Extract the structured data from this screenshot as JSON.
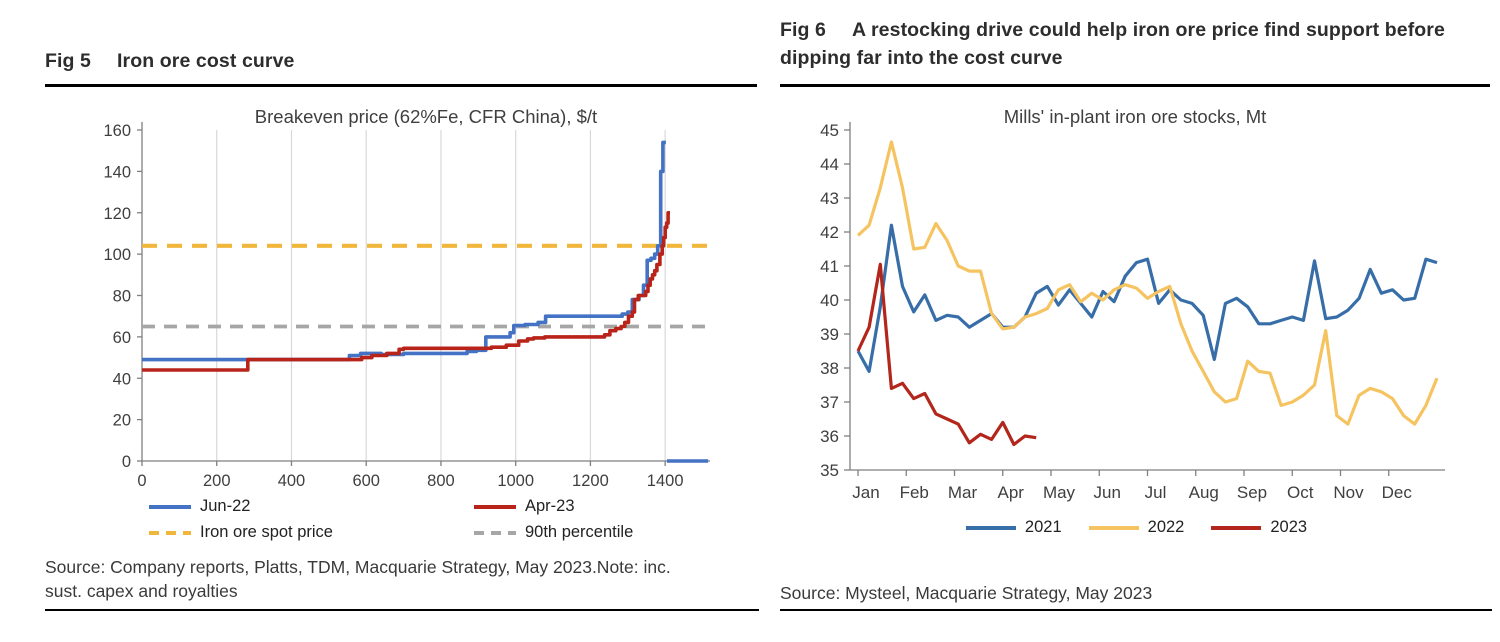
{
  "fig5": {
    "label": "Fig 5",
    "title": "Iron ore cost curve",
    "source": "Source: Company reports, Platts, TDM, Macquarie Strategy, May 2023.Note: inc. sust. capex and royalties"
  },
  "fig6": {
    "label": "Fig 6",
    "title": "A restocking drive could help iron ore price find support before dipping far into the cost curve",
    "source": "Source: Mysteel, Macquarie Strategy, May 2023"
  },
  "chart_data": [
    {
      "id": "fig5-chart",
      "type": "line",
      "title": "Breakeven price (62%Fe, CFR China), $/t",
      "xlabel": "",
      "ylabel": "",
      "xlim": [
        0,
        1520
      ],
      "ylim": [
        0,
        160
      ],
      "xticks": [
        0,
        200,
        400,
        600,
        800,
        1000,
        1200,
        1400
      ],
      "yticks": [
        0,
        20,
        40,
        60,
        80,
        100,
        120,
        140,
        160
      ],
      "grid": "vertical-light",
      "grid_color": "#d8d8d8",
      "axis_color": "#7f7f7f",
      "tick_text_color": "#3f3f3f",
      "series": [
        {
          "name": "Jun-22",
          "color": "#4472c4",
          "dash": null,
          "width": 3.6,
          "segments": [
            [
              [
                0,
                49
              ],
              [
                555,
                49
              ],
              [
                555,
                51
              ],
              [
                585,
                51
              ],
              [
                585,
                52
              ],
              [
                640,
                52
              ],
              [
                640,
                51.5
              ],
              [
                700,
                51.5
              ],
              [
                700,
                52
              ],
              [
                870,
                52
              ],
              [
                870,
                53
              ],
              [
                895,
                53
              ],
              [
                895,
                53.5
              ],
              [
                920,
                53.5
              ],
              [
                920,
                60
              ],
              [
                985,
                60
              ],
              [
                985,
                62
              ],
              [
                995,
                62
              ],
              [
                995,
                65.5
              ],
              [
                1025,
                65.5
              ],
              [
                1025,
                66
              ],
              [
                1060,
                66
              ],
              [
                1060,
                67
              ],
              [
                1080,
                67
              ],
              [
                1080,
                70
              ],
              [
                1285,
                70
              ],
              [
                1285,
                71
              ],
              [
                1300,
                71
              ],
              [
                1300,
                72
              ],
              [
                1312,
                72
              ],
              [
                1312,
                78
              ],
              [
                1330,
                78
              ],
              [
                1330,
                80
              ],
              [
                1342,
                80
              ],
              [
                1342,
                85
              ],
              [
                1352,
                85
              ],
              [
                1352,
                97
              ],
              [
                1362,
                97
              ],
              [
                1362,
                98
              ],
              [
                1372,
                98
              ],
              [
                1372,
                100
              ],
              [
                1380,
                100
              ],
              [
                1380,
                104
              ],
              [
                1388,
                104
              ],
              [
                1388,
                140
              ],
              [
                1394,
                140
              ],
              [
                1394,
                154
              ],
              [
                1402,
                154
              ]
            ],
            [
              [
                1405,
                0
              ],
              [
                1515,
                0
              ]
            ]
          ]
        },
        {
          "name": "Apr-23",
          "color": "#b8231a",
          "dash": null,
          "width": 3.6,
          "segments": [
            [
              [
                0,
                44
              ],
              [
                283,
                44
              ],
              [
                283,
                49
              ],
              [
                588,
                49
              ],
              [
                588,
                50
              ],
              [
                615,
                50
              ],
              [
                615,
                51
              ],
              [
                655,
                51
              ],
              [
                655,
                52
              ],
              [
                688,
                52
              ],
              [
                688,
                54
              ],
              [
                700,
                54
              ],
              [
                700,
                54.5
              ],
              [
                935,
                54.5
              ],
              [
                935,
                55
              ],
              [
                975,
                55
              ],
              [
                975,
                56
              ],
              [
                1008,
                56
              ],
              [
                1008,
                58
              ],
              [
                1032,
                58
              ],
              [
                1032,
                59
              ],
              [
                1048,
                59
              ],
              [
                1048,
                59.5
              ],
              [
                1078,
                59.5
              ],
              [
                1078,
                60
              ],
              [
                1238,
                60
              ],
              [
                1238,
                61
              ],
              [
                1252,
                61
              ],
              [
                1252,
                63
              ],
              [
                1268,
                63
              ],
              [
                1268,
                64
              ],
              [
                1282,
                64
              ],
              [
                1282,
                65
              ],
              [
                1292,
                65
              ],
              [
                1292,
                67
              ],
              [
                1302,
                67
              ],
              [
                1302,
                70
              ],
              [
                1312,
                70
              ],
              [
                1312,
                72
              ],
              [
                1318,
                72
              ],
              [
                1318,
                78
              ],
              [
                1328,
                78
              ],
              [
                1328,
                80
              ],
              [
                1348,
                80
              ],
              [
                1348,
                82
              ],
              [
                1354,
                82
              ],
              [
                1354,
                85
              ],
              [
                1360,
                85
              ],
              [
                1360,
                88
              ],
              [
                1366,
                88
              ],
              [
                1366,
                90
              ],
              [
                1372,
                90
              ],
              [
                1372,
                92
              ],
              [
                1378,
                92
              ],
              [
                1378,
                95
              ],
              [
                1386,
                95
              ],
              [
                1386,
                100
              ],
              [
                1392,
                100
              ],
              [
                1392,
                104
              ],
              [
                1396,
                104
              ],
              [
                1396,
                108
              ],
              [
                1400,
                108
              ],
              [
                1400,
                113
              ],
              [
                1404,
                113
              ],
              [
                1404,
                115
              ],
              [
                1408,
                115
              ],
              [
                1408,
                120
              ],
              [
                1413,
                120
              ]
            ]
          ]
        },
        {
          "name": "Iron ore spot price",
          "color": "#f0b73c",
          "dash": [
            15,
            10
          ],
          "width": 4.2,
          "segments": [
            [
              [
                0,
                104
              ],
              [
                1515,
                104
              ]
            ]
          ]
        },
        {
          "name": "90th percentile",
          "color": "#a6a6a6",
          "dash": [
            13,
            9
          ],
          "width": 3.8,
          "segments": [
            [
              [
                0,
                65
              ],
              [
                1515,
                65
              ]
            ]
          ]
        }
      ],
      "legend": [
        {
          "label": "Jun-22",
          "color": "#4472c4",
          "dashed": false
        },
        {
          "label": "Apr-23",
          "color": "#b8231a",
          "dashed": false
        },
        {
          "label": "Iron ore spot price",
          "color": "#f0b73c",
          "dashed": true
        },
        {
          "label": "90th percentile",
          "color": "#a6a6a6",
          "dashed": true
        }
      ],
      "legend_position": "bottom-two-columns"
    },
    {
      "id": "fig6-chart",
      "type": "line",
      "title": "Mills' in-plant iron ore stocks, Mt",
      "xlabel": "",
      "ylabel": "",
      "x_categories": [
        "Jan",
        "Feb",
        "Mar",
        "Apr",
        "May",
        "Jun",
        "Jul",
        "Aug",
        "Sep",
        "Oct",
        "Nov",
        "Dec"
      ],
      "ylim": [
        35,
        45
      ],
      "yticks": [
        35,
        36,
        37,
        38,
        39,
        40,
        41,
        42,
        43,
        44,
        45
      ],
      "grid": "none",
      "axis_color": "#7f7f7f",
      "tick_text_color": "#3f3f3f",
      "series": [
        {
          "name": "2021",
          "color": "#376ea8",
          "width": 3.2,
          "values": [
            38.5,
            37.9,
            39.8,
            42.2,
            40.4,
            39.65,
            40.15,
            39.4,
            39.55,
            39.5,
            39.2,
            39.4,
            39.6,
            39.2,
            39.2,
            39.5,
            40.2,
            40.4,
            39.85,
            40.3,
            39.9,
            39.5,
            40.25,
            39.95,
            40.7,
            41.1,
            41.2,
            39.9,
            40.3,
            40.0,
            39.9,
            39.55,
            38.25,
            39.9,
            40.05,
            39.8,
            39.3,
            39.3,
            39.4,
            39.5,
            39.4,
            41.15,
            39.45,
            39.5,
            39.7,
            40.05,
            40.9,
            40.2,
            40.3,
            40.0,
            40.05,
            41.2,
            41.1
          ]
        },
        {
          "name": "2022",
          "color": "#f6c361",
          "width": 3.2,
          "values": [
            41.9,
            42.2,
            43.3,
            44.65,
            43.3,
            41.5,
            41.55,
            42.25,
            41.75,
            41.0,
            40.85,
            40.85,
            39.6,
            39.15,
            39.2,
            39.5,
            39.6,
            39.75,
            40.3,
            40.45,
            39.95,
            40.2,
            40.0,
            40.3,
            40.45,
            40.35,
            40.05,
            40.25,
            40.4,
            39.3,
            38.5,
            37.9,
            37.3,
            37.0,
            37.1,
            38.2,
            37.9,
            37.85,
            36.9,
            37.0,
            37.2,
            37.5,
            39.1,
            36.6,
            36.35,
            37.2,
            37.4,
            37.3,
            37.1,
            36.6,
            36.35,
            36.9,
            37.7
          ]
        },
        {
          "name": "2023",
          "color": "#b2261b",
          "width": 3.2,
          "values": [
            38.5,
            39.2,
            41.05,
            37.4,
            37.55,
            37.1,
            37.25,
            36.65,
            36.5,
            36.35,
            35.8,
            36.05,
            35.9,
            36.4,
            35.75,
            36.0,
            35.95
          ]
        }
      ],
      "legend": [
        {
          "label": "2021",
          "color": "#376ea8",
          "dashed": false
        },
        {
          "label": "2022",
          "color": "#f6c361",
          "dashed": false
        },
        {
          "label": "2023",
          "color": "#b2261b",
          "dashed": false
        }
      ],
      "legend_position": "bottom-center"
    }
  ]
}
